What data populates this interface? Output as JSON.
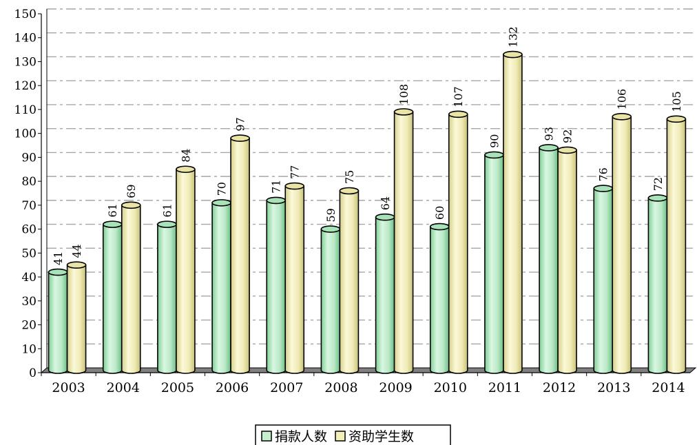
{
  "chart_data": {
    "type": "bar",
    "style": "3d-cylinder",
    "categories": [
      "2003",
      "2004",
      "2005",
      "2006",
      "2007",
      "2008",
      "2009",
      "2010",
      "2011",
      "2012",
      "2013",
      "2014"
    ],
    "series": [
      {
        "name": "捐款人数",
        "color": "#c6efce",
        "values": [
          41,
          61,
          61,
          70,
          71,
          59,
          64,
          60,
          90,
          93,
          76,
          72
        ]
      },
      {
        "name": "资助学生数",
        "color": "#f2efb8",
        "values": [
          44,
          69,
          84,
          97,
          77,
          75,
          108,
          107,
          132,
          92,
          106,
          105
        ]
      }
    ],
    "ylim": [
      0,
      150
    ],
    "ytick_step": 10,
    "grid": true,
    "legend_position": "bottom-center",
    "data_labels": true
  }
}
